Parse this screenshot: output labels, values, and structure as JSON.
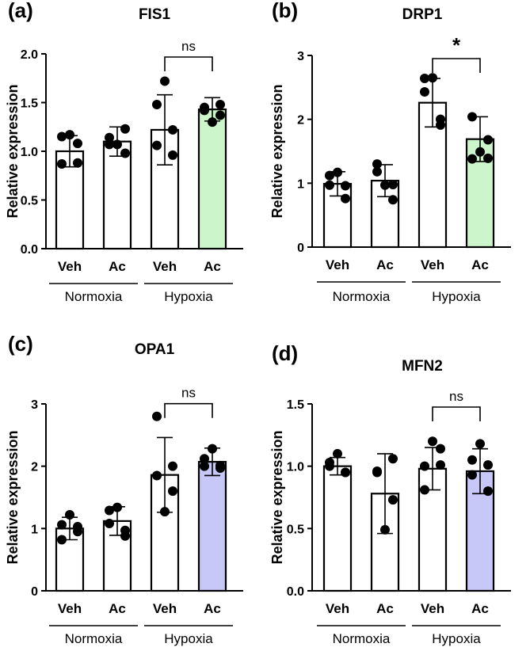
{
  "chart_data": [
    {
      "panel": "(a)",
      "type": "bar",
      "title": "FIS1",
      "ylabel": "Relative expression",
      "ylim": [
        0,
        2.0
      ],
      "yticks": [
        "0.0",
        "0.5",
        "1.0",
        "1.5",
        "2.0"
      ],
      "yticks_values": [
        0,
        0.5,
        1.0,
        1.5,
        2.0
      ],
      "categories": [
        "Veh",
        "Ac",
        "Veh",
        "Ac"
      ],
      "groups": [
        "Normoxia",
        "Hypoxia"
      ],
      "means": [
        1.0,
        1.1,
        1.22,
        1.43
      ],
      "sd": [
        0.16,
        0.15,
        0.36,
        0.12
      ],
      "points": [
        [
          1.15,
          1.08,
          0.87,
          0.88,
          1.17
        ],
        [
          1.14,
          1.23,
          1.07,
          0.98,
          1.07
        ],
        [
          1.48,
          1.22,
          1.06,
          0.96,
          1.72
        ],
        [
          1.42,
          1.48,
          1.45,
          1.37,
          1.3
        ]
      ],
      "colors": [
        "#ffffff",
        "#ffffff",
        "#ffffff",
        "#ccf5cc"
      ],
      "comparison": {
        "between": [
          2,
          3
        ],
        "label": "ns"
      }
    },
    {
      "panel": "(b)",
      "type": "bar",
      "title": "DRP1",
      "ylabel": "Relative expression",
      "ylim": [
        0,
        3
      ],
      "yticks": [
        "0",
        "1",
        "2",
        "3"
      ],
      "yticks_values": [
        0,
        1,
        2,
        3
      ],
      "categories": [
        "Veh",
        "Ac",
        "Veh",
        "Ac"
      ],
      "groups": [
        "Normoxia",
        "Hypoxia"
      ],
      "means": [
        0.99,
        1.04,
        2.26,
        1.69
      ],
      "sd": [
        0.19,
        0.25,
        0.38,
        0.35
      ],
      "points": [
        [
          1.12,
          0.96,
          0.97,
          0.76,
          1.17
        ],
        [
          1.18,
          0.98,
          1.3,
          0.74,
          0.97
        ],
        [
          2.64,
          2.0,
          2.43,
          1.91,
          2.65
        ],
        [
          1.38,
          1.68,
          2.04,
          1.39,
          1.49
        ]
      ],
      "colors": [
        "#ffffff",
        "#ffffff",
        "#ffffff",
        "#ccf5cc"
      ],
      "comparison": {
        "between": [
          2,
          3
        ],
        "label": "*"
      }
    },
    {
      "panel": "(c)",
      "type": "bar",
      "title": "OPA1",
      "ylabel": "Relative expression",
      "ylim": [
        0,
        3
      ],
      "yticks": [
        "0",
        "1",
        "2",
        "3"
      ],
      "yticks_values": [
        0,
        1,
        2,
        3
      ],
      "categories": [
        "Veh",
        "Ac",
        "Veh",
        "Ac"
      ],
      "groups": [
        "Normoxia",
        "Hypoxia"
      ],
      "means": [
        1.0,
        1.12,
        1.86,
        2.07
      ],
      "sd": [
        0.18,
        0.23,
        0.6,
        0.22
      ],
      "points": [
        [
          1.06,
          1.03,
          0.82,
          0.95,
          1.22
        ],
        [
          1.29,
          0.97,
          1.08,
          0.88,
          1.34
        ],
        [
          1.85,
          1.6,
          2.8,
          2.0,
          1.27
        ],
        [
          2.0,
          2.01,
          2.12,
          1.97,
          2.28
        ]
      ],
      "colors": [
        "#ffffff",
        "#ffffff",
        "#ffffff",
        "#c8c8f8"
      ],
      "comparison": {
        "between": [
          2,
          3
        ],
        "label": "ns"
      }
    },
    {
      "panel": "(d)",
      "type": "bar",
      "title": "MFN2",
      "ylabel": "Relative expression",
      "ylim": [
        0,
        1.5
      ],
      "yticks": [
        "0.0",
        "0.5",
        "1.0",
        "1.5"
      ],
      "yticks_values": [
        0,
        0.5,
        1.0,
        1.5
      ],
      "categories": [
        "Veh",
        "Ac",
        "Veh",
        "Ac"
      ],
      "groups": [
        "Normoxia",
        "Hypoxia"
      ],
      "means": [
        1.0,
        0.78,
        0.98,
        0.96
      ],
      "sd": [
        0.07,
        0.32,
        0.17,
        0.18
      ],
      "points": [
        [
          1.0,
          0.95,
          1.03,
          0.95,
          1.1
        ],
        [
          0.96,
          0.73,
          0.95,
          1.06,
          0.49
        ],
        [
          0.81,
          1.01,
          1.0,
          1.14,
          1.2
        ],
        [
          1.05,
          1.01,
          0.93,
          0.8,
          1.18
        ]
      ],
      "colors": [
        "#ffffff",
        "#ffffff",
        "#ffffff",
        "#c8c8f8"
      ],
      "comparison": {
        "between": [
          2,
          3
        ],
        "label": "ns"
      }
    }
  ]
}
